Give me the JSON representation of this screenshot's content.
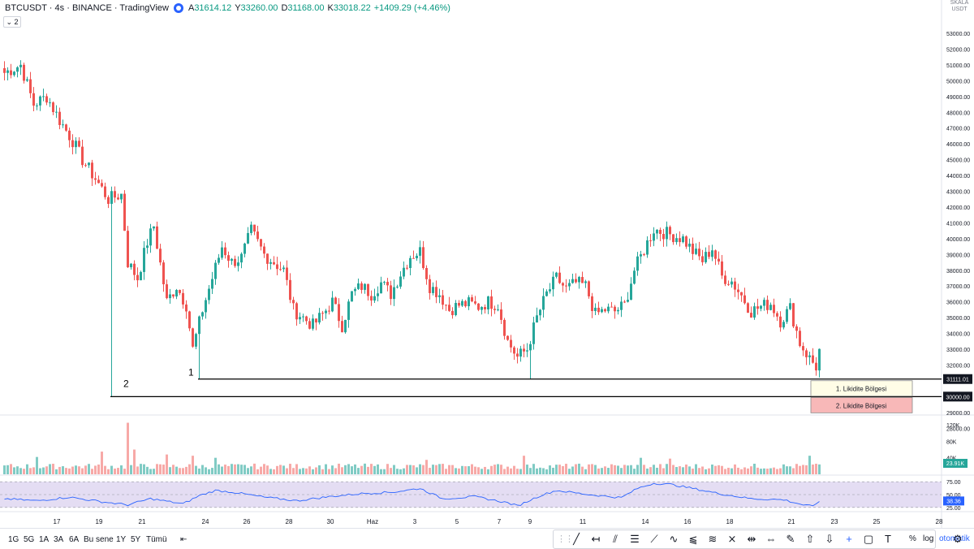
{
  "header": {
    "symbol": "BTCUSDT",
    "interval": "4s",
    "exchange": "BINANCE",
    "source": "TradingView",
    "open_label": "A",
    "open": "31614.12",
    "high_label": "Y",
    "high": "33260.00",
    "low_label": "D",
    "low": "31168.00",
    "close_label": "K",
    "close": "33018.22",
    "change": "+1409.29 (+4.46%)",
    "indicator_toggle": "⌄ 2"
  },
  "price_axis": {
    "currency": "USDT",
    "currency_extra": "SKALA"
  },
  "annotations": {
    "label_1": "1",
    "label_2": "2",
    "zone_1": "1. Likidite Bölgesi",
    "zone_2": "2. Likidite Bölgesi",
    "line_1_price": "31111.01",
    "line_2_price": "30000.00"
  },
  "colors": {
    "up": "#26a69a",
    "down": "#ef5350",
    "vol_up": "#80cbc4",
    "vol_down": "#f7a9a7",
    "rsi_line": "#2962ff",
    "rsi_band": "#d9cfee",
    "zone_1_fill": "#fffde7",
    "zone_2_fill": "#f8b8b8"
  },
  "time_axis": {
    "labels": [
      "17",
      "19",
      "21",
      "24",
      "26",
      "28",
      "30",
      "Haz",
      "3",
      "5",
      "7",
      "9",
      "11",
      "14",
      "16",
      "18",
      "21",
      "23",
      "25",
      "28"
    ]
  },
  "volume_axis": {
    "ticks": [
      "120K",
      "80K",
      "40K"
    ],
    "current": "23.91K"
  },
  "rsi_axis": {
    "ticks": [
      "75.00",
      "50.00",
      "25.00"
    ],
    "current": "38.36"
  },
  "bottom_bar": {
    "ranges": [
      "1G",
      "5G",
      "1A",
      "3A",
      "6A",
      "Bu sene",
      "1Y",
      "5Y",
      "Tümü"
    ],
    "percent": "%",
    "log": "log",
    "auto": "otomatik"
  },
  "chart_data": {
    "type": "candlestick",
    "y_axis": {
      "min": 28000,
      "max": 53000,
      "ticks": [
        53000,
        52000,
        51000,
        50000,
        49000,
        48000,
        47000,
        46000,
        45000,
        44000,
        43000,
        42000,
        41000,
        40000,
        39000,
        38000,
        37000,
        36000,
        35000,
        34000,
        33000,
        32000,
        31000,
        29000,
        28000
      ]
    },
    "price_path": [
      [
        0,
        50500
      ],
      [
        5,
        51000
      ],
      [
        9,
        48500
      ],
      [
        13,
        49000
      ],
      [
        17,
        47500
      ],
      [
        21,
        46200
      ],
      [
        24,
        45000
      ],
      [
        28,
        43800
      ],
      [
        32,
        42500
      ],
      [
        36,
        42800
      ],
      [
        38,
        38500
      ],
      [
        41,
        37500
      ],
      [
        44,
        39800
      ],
      [
        46,
        40800
      ],
      [
        50,
        36000
      ],
      [
        53,
        37000
      ],
      [
        56,
        35800
      ],
      [
        58,
        33000
      ],
      [
        61,
        35500
      ],
      [
        64,
        37500
      ],
      [
        67,
        39500
      ],
      [
        70,
        38500
      ],
      [
        73,
        38800
      ],
      [
        76,
        40500
      ],
      [
        80,
        39000
      ],
      [
        83,
        38500
      ],
      [
        86,
        38000
      ],
      [
        89,
        35500
      ],
      [
        92,
        35000
      ],
      [
        95,
        34500
      ],
      [
        98,
        35200
      ],
      [
        101,
        36000
      ],
      [
        104,
        34500
      ],
      [
        107,
        36500
      ],
      [
        110,
        37000
      ],
      [
        113,
        36500
      ],
      [
        116,
        37200
      ],
      [
        119,
        36500
      ],
      [
        122,
        37800
      ],
      [
        125,
        38900
      ],
      [
        128,
        39200
      ],
      [
        131,
        37000
      ],
      [
        134,
        36500
      ],
      [
        137,
        35500
      ],
      [
        140,
        35800
      ],
      [
        143,
        35900
      ],
      [
        146,
        35700
      ],
      [
        149,
        36000
      ],
      [
        152,
        35800
      ],
      [
        155,
        33500
      ],
      [
        158,
        32500
      ],
      [
        161,
        33000
      ],
      [
        164,
        35000
      ],
      [
        167,
        36500
      ],
      [
        170,
        37500
      ],
      [
        173,
        36800
      ],
      [
        176,
        37200
      ],
      [
        179,
        37000
      ],
      [
        182,
        35200
      ],
      [
        185,
        35500
      ],
      [
        188,
        35400
      ],
      [
        191,
        35800
      ],
      [
        194,
        38000
      ],
      [
        197,
        39300
      ],
      [
        200,
        40600
      ],
      [
        203,
        40400
      ],
      [
        206,
        40200
      ],
      [
        209,
        40000
      ],
      [
        212,
        39200
      ],
      [
        215,
        38600
      ],
      [
        218,
        39400
      ],
      [
        221,
        37600
      ],
      [
        224,
        37300
      ],
      [
        227,
        36400
      ],
      [
        230,
        35400
      ],
      [
        233,
        35700
      ],
      [
        236,
        35900
      ],
      [
        239,
        34800
      ],
      [
        242,
        35600
      ],
      [
        245,
        33400
      ],
      [
        248,
        32400
      ],
      [
        250,
        31900
      ],
      [
        251,
        33018
      ]
    ],
    "volume": {
      "max": 130000,
      "spikes": [
        [
          10,
          42000
        ],
        [
          30,
          55000
        ],
        [
          38,
          125000
        ],
        [
          40,
          60000
        ],
        [
          50,
          48000
        ],
        [
          58,
          45000
        ],
        [
          65,
          40000
        ],
        [
          130,
          35000
        ],
        [
          160,
          45000
        ],
        [
          196,
          40000
        ],
        [
          205,
          38000
        ],
        [
          248,
          45000
        ],
        [
          251,
          23910
        ]
      ]
    },
    "rsi": {
      "min": 20,
      "max": 80,
      "upper": 75,
      "mid": 50,
      "lower": 25,
      "path": [
        [
          0,
          42
        ],
        [
          10,
          38
        ],
        [
          20,
          45
        ],
        [
          30,
          36
        ],
        [
          38,
          30
        ],
        [
          45,
          42
        ],
        [
          55,
          32
        ],
        [
          60,
          48
        ],
        [
          65,
          58
        ],
        [
          70,
          55
        ],
        [
          80,
          45
        ],
        [
          90,
          38
        ],
        [
          100,
          46
        ],
        [
          110,
          52
        ],
        [
          120,
          55
        ],
        [
          128,
          62
        ],
        [
          135,
          42
        ],
        [
          145,
          46
        ],
        [
          155,
          34
        ],
        [
          158,
          28
        ],
        [
          165,
          48
        ],
        [
          170,
          58
        ],
        [
          180,
          50
        ],
        [
          190,
          44
        ],
        [
          195,
          62
        ],
        [
          200,
          72
        ],
        [
          205,
          70
        ],
        [
          212,
          62
        ],
        [
          220,
          52
        ],
        [
          230,
          42
        ],
        [
          240,
          40
        ],
        [
          246,
          30
        ],
        [
          249,
          27
        ],
        [
          251,
          38
        ]
      ]
    },
    "horizontal_lines": [
      31111.01,
      30000
    ]
  }
}
